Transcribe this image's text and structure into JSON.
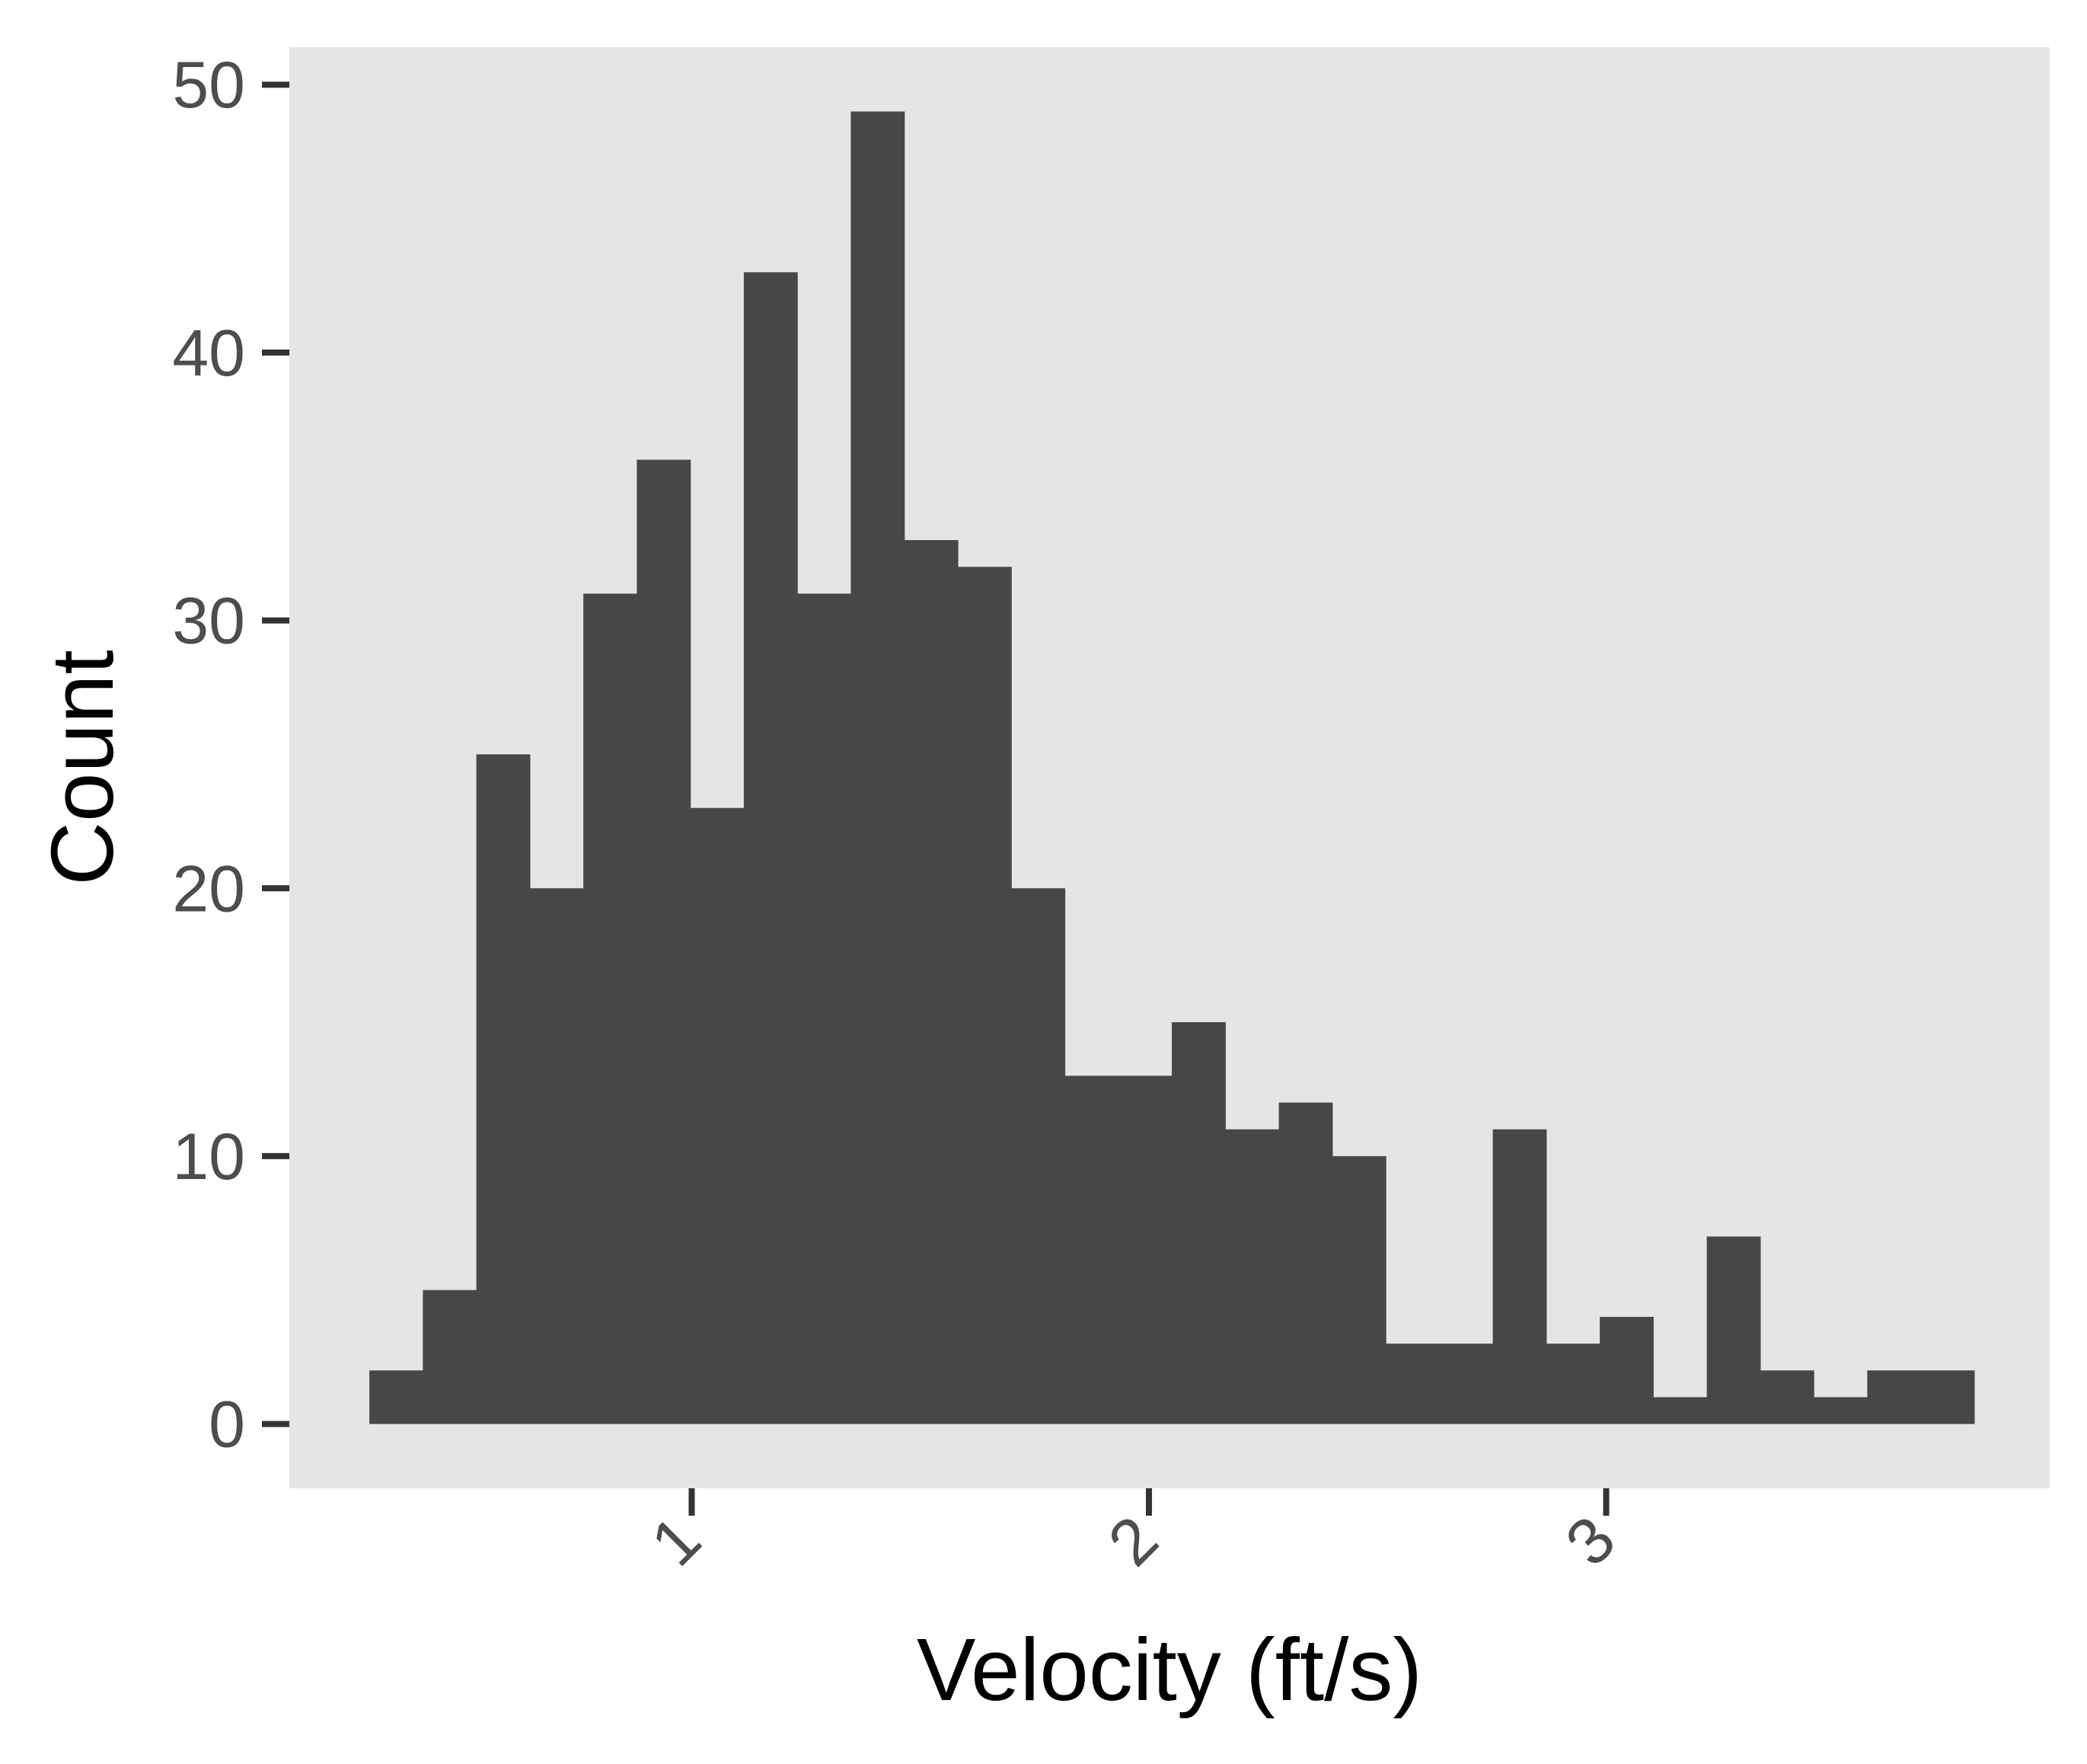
{
  "chart_data": {
    "type": "bar",
    "subtype": "histogram",
    "xlabel": "Velocity (ft/s)",
    "ylabel": "Count",
    "xlim": [
      0.12,
      3.97
    ],
    "ylim": [
      -2.4,
      51.4
    ],
    "x_ticks": [
      1,
      2,
      3
    ],
    "x_tick_labels": [
      "1",
      "2",
      "3"
    ],
    "y_ticks": [
      0,
      10,
      20,
      30,
      40,
      50
    ],
    "y_tick_labels": [
      "0",
      "10",
      "20",
      "30",
      "40",
      "50"
    ],
    "bin_edges": [
      0.295,
      0.412,
      0.529,
      0.646,
      0.763,
      0.88,
      0.997,
      1.114,
      1.231,
      1.348,
      1.465,
      1.582,
      1.699,
      1.816,
      1.933,
      2.05,
      2.167,
      2.284,
      2.401,
      2.518,
      2.635,
      2.752,
      2.869,
      2.986,
      3.103,
      3.22,
      3.337,
      3.454,
      3.571,
      3.688,
      3.805
    ],
    "values": [
      2,
      5,
      25,
      20,
      31,
      36,
      23,
      43,
      31,
      49,
      33,
      32,
      20,
      13,
      13,
      15,
      11,
      12,
      10,
      3,
      3,
      11,
      3,
      4,
      1,
      7,
      2,
      1,
      2,
      2
    ],
    "grid": false,
    "legend": "none",
    "colors": {
      "bar": "#474747",
      "panel": "#e5e5e5",
      "tick_mark": "#333333",
      "tick_label": "#4d4d4d",
      "axis_title": "#000000",
      "background": "#ffffff"
    }
  }
}
